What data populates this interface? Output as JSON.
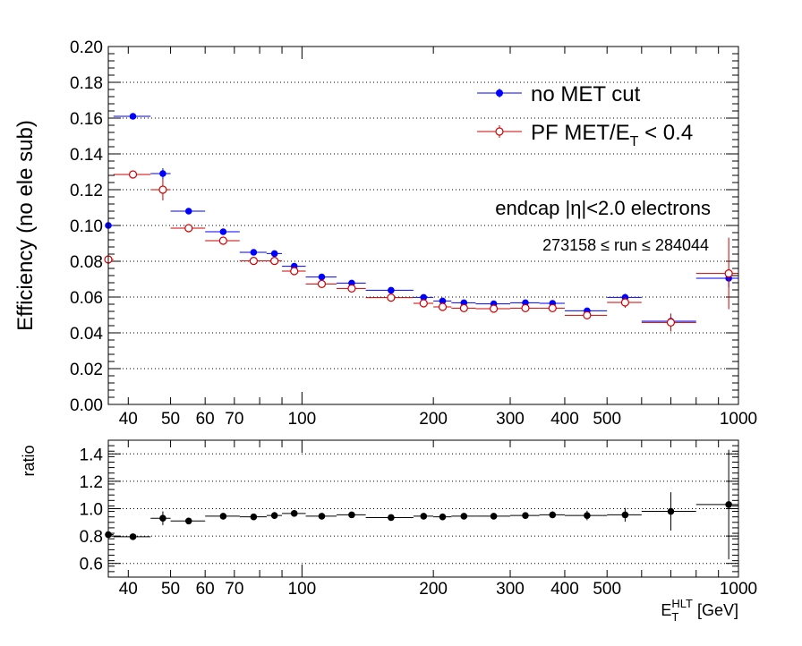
{
  "chart_data": [
    {
      "type": "scatter",
      "ylabel": "Efficiency (no ele sub)",
      "xscale": "log",
      "xlim": [
        36,
        1000
      ],
      "ylim": [
        0.0,
        0.2
      ],
      "grid": "horizontal-dotted",
      "yticks": [
        "0.00",
        "0.02",
        "0.04",
        "0.06",
        "0.08",
        "0.10",
        "0.12",
        "0.14",
        "0.16",
        "0.18",
        "0.20"
      ],
      "xticks": [
        "40",
        "50",
        "60",
        "70",
        "100",
        "200",
        "300",
        "400",
        "500",
        "1000"
      ],
      "legend": {
        "placement": "top-right",
        "entries": [
          {
            "text": "no MET cut",
            "color": "#0000ff",
            "marker": "filled-circle"
          },
          {
            "text_main": "PF MET/E",
            "text_sub": "T",
            "text_tail": " < 0.4",
            "color": "#d00000",
            "marker": "open-circle"
          }
        ]
      },
      "annotations": [
        "endcap |η|<2.0 electrons",
        "273158 ≤ run ≤ 284044"
      ],
      "series": [
        {
          "name": "no MET cut",
          "color": "#0000ff",
          "points": [
            {
              "x": 36,
              "xl": 35,
              "xh": 37,
              "y": 0.1,
              "e": 0.003
            },
            {
              "x": 41,
              "xl": 37,
              "xh": 45,
              "y": 0.161,
              "e": 0.001
            },
            {
              "x": 48,
              "xl": 45,
              "xh": 50,
              "y": 0.129,
              "e": 0.003
            },
            {
              "x": 55,
              "xl": 50,
              "xh": 60,
              "y": 0.108,
              "e": 0.001
            },
            {
              "x": 66,
              "xl": 60,
              "xh": 72,
              "y": 0.0965,
              "e": 0.001
            },
            {
              "x": 77.5,
              "xl": 72,
              "xh": 83,
              "y": 0.085,
              "e": 0.001
            },
            {
              "x": 86.5,
              "xl": 83,
              "xh": 90,
              "y": 0.0843,
              "e": 0.001
            },
            {
              "x": 96,
              "xl": 90,
              "xh": 102,
              "y": 0.0772,
              "e": 0.001
            },
            {
              "x": 111,
              "xl": 102,
              "xh": 120,
              "y": 0.0712,
              "e": 0.001
            },
            {
              "x": 130,
              "xl": 120,
              "xh": 140,
              "y": 0.0678,
              "e": 0.001
            },
            {
              "x": 160,
              "xl": 140,
              "xh": 180,
              "y": 0.0638,
              "e": 0.001
            },
            {
              "x": 190,
              "xl": 180,
              "xh": 200,
              "y": 0.0598,
              "e": 0.001
            },
            {
              "x": 210,
              "xl": 200,
              "xh": 220,
              "y": 0.0578,
              "e": 0.001
            },
            {
              "x": 235,
              "xl": 220,
              "xh": 250,
              "y": 0.0568,
              "e": 0.001
            },
            {
              "x": 275,
              "xl": 250,
              "xh": 300,
              "y": 0.0562,
              "e": 0.001
            },
            {
              "x": 325,
              "xl": 300,
              "xh": 350,
              "y": 0.0568,
              "e": 0.001
            },
            {
              "x": 375,
              "xl": 350,
              "xh": 400,
              "y": 0.0565,
              "e": 0.001
            },
            {
              "x": 450,
              "xl": 400,
              "xh": 500,
              "y": 0.0523,
              "e": 0.001
            },
            {
              "x": 550,
              "xl": 500,
              "xh": 600,
              "y": 0.0598,
              "e": 0.002
            },
            {
              "x": 700,
              "xl": 600,
              "xh": 800,
              "y": 0.0465,
              "e": 0.002
            },
            {
              "x": 950,
              "xl": 800,
              "xh": 1000,
              "y": 0.0705,
              "e": 0.005
            }
          ]
        },
        {
          "name": "PF MET/E_T < 0.4",
          "color": "#d00000",
          "points": [
            {
              "x": 36,
              "xl": 35,
              "xh": 37,
              "y": 0.081,
              "e": 0.008
            },
            {
              "x": 41,
              "xl": 37,
              "xh": 45,
              "y": 0.1285,
              "e": 0.0015
            },
            {
              "x": 48,
              "xl": 45,
              "xh": 50,
              "y": 0.12,
              "e": 0.006
            },
            {
              "x": 55,
              "xl": 50,
              "xh": 60,
              "y": 0.0985,
              "e": 0.0015
            },
            {
              "x": 66,
              "xl": 60,
              "xh": 72,
              "y": 0.0915,
              "e": 0.002
            },
            {
              "x": 77.5,
              "xl": 72,
              "xh": 83,
              "y": 0.0802,
              "e": 0.001
            },
            {
              "x": 86.5,
              "xl": 83,
              "xh": 90,
              "y": 0.0802,
              "e": 0.001
            },
            {
              "x": 96,
              "xl": 90,
              "xh": 102,
              "y": 0.0745,
              "e": 0.0015
            },
            {
              "x": 111,
              "xl": 102,
              "xh": 120,
              "y": 0.0673,
              "e": 0.001
            },
            {
              "x": 130,
              "xl": 120,
              "xh": 140,
              "y": 0.0648,
              "e": 0.001
            },
            {
              "x": 160,
              "xl": 140,
              "xh": 180,
              "y": 0.0597,
              "e": 0.001
            },
            {
              "x": 190,
              "xl": 180,
              "xh": 200,
              "y": 0.0565,
              "e": 0.001
            },
            {
              "x": 210,
              "xl": 200,
              "xh": 220,
              "y": 0.0545,
              "e": 0.001
            },
            {
              "x": 235,
              "xl": 220,
              "xh": 250,
              "y": 0.0538,
              "e": 0.001
            },
            {
              "x": 275,
              "xl": 250,
              "xh": 300,
              "y": 0.0535,
              "e": 0.001
            },
            {
              "x": 325,
              "xl": 300,
              "xh": 350,
              "y": 0.0538,
              "e": 0.001
            },
            {
              "x": 375,
              "xl": 350,
              "xh": 400,
              "y": 0.0538,
              "e": 0.001
            },
            {
              "x": 450,
              "xl": 400,
              "xh": 500,
              "y": 0.0498,
              "e": 0.002
            },
            {
              "x": 550,
              "xl": 500,
              "xh": 600,
              "y": 0.057,
              "e": 0.003
            },
            {
              "x": 700,
              "xl": 600,
              "xh": 800,
              "y": 0.0458,
              "e": 0.005
            },
            {
              "x": 950,
              "xl": 800,
              "xh": 1000,
              "y": 0.0732,
              "e": 0.02
            }
          ]
        }
      ]
    },
    {
      "type": "scatter",
      "ylabel": "ratio",
      "xscale": "log",
      "xlim": [
        36,
        1000
      ],
      "ylim": [
        0.5,
        1.5
      ],
      "grid": "horizontal-dotted",
      "yticks": [
        "0.6",
        "0.8",
        "1.0",
        "1.2",
        "1.4"
      ],
      "xticks": [
        "40",
        "50",
        "60",
        "70",
        "100",
        "200",
        "300",
        "400",
        "500",
        "1000"
      ],
      "xlabel_main": "E",
      "xlabel_sub": "T",
      "xlabel_sup": "HLT",
      "xlabel_tail": " [GeV]",
      "series": [
        {
          "color": "#000000",
          "points": [
            {
              "x": 36,
              "xl": 35,
              "xh": 37,
              "y": 0.81,
              "e": 0.08
            },
            {
              "x": 41,
              "xl": 37,
              "xh": 45,
              "y": 0.795,
              "e": 0.01
            },
            {
              "x": 48,
              "xl": 45,
              "xh": 50,
              "y": 0.93,
              "e": 0.05
            },
            {
              "x": 55,
              "xl": 50,
              "xh": 60,
              "y": 0.91,
              "e": 0.015
            },
            {
              "x": 66,
              "xl": 60,
              "xh": 72,
              "y": 0.945,
              "e": 0.02
            },
            {
              "x": 77.5,
              "xl": 72,
              "xh": 83,
              "y": 0.94,
              "e": 0.02
            },
            {
              "x": 86.5,
              "xl": 83,
              "xh": 90,
              "y": 0.95,
              "e": 0.025
            },
            {
              "x": 96,
              "xl": 90,
              "xh": 102,
              "y": 0.965,
              "e": 0.02
            },
            {
              "x": 111,
              "xl": 102,
              "xh": 120,
              "y": 0.945,
              "e": 0.02
            },
            {
              "x": 130,
              "xl": 120,
              "xh": 140,
              "y": 0.955,
              "e": 0.02
            },
            {
              "x": 160,
              "xl": 140,
              "xh": 180,
              "y": 0.935,
              "e": 0.02
            },
            {
              "x": 190,
              "xl": 180,
              "xh": 200,
              "y": 0.945,
              "e": 0.02
            },
            {
              "x": 210,
              "xl": 200,
              "xh": 220,
              "y": 0.94,
              "e": 0.02
            },
            {
              "x": 235,
              "xl": 220,
              "xh": 250,
              "y": 0.945,
              "e": 0.02
            },
            {
              "x": 275,
              "xl": 250,
              "xh": 300,
              "y": 0.945,
              "e": 0.02
            },
            {
              "x": 325,
              "xl": 300,
              "xh": 350,
              "y": 0.95,
              "e": 0.02
            },
            {
              "x": 375,
              "xl": 350,
              "xh": 400,
              "y": 0.955,
              "e": 0.025
            },
            {
              "x": 450,
              "xl": 400,
              "xh": 500,
              "y": 0.95,
              "e": 0.035
            },
            {
              "x": 550,
              "xl": 500,
              "xh": 600,
              "y": 0.955,
              "e": 0.05
            },
            {
              "x": 700,
              "xl": 600,
              "xh": 800,
              "y": 0.98,
              "e": 0.14
            },
            {
              "x": 950,
              "xl": 800,
              "xh": 1000,
              "y": 1.03,
              "e": 0.4
            }
          ]
        }
      ]
    }
  ]
}
